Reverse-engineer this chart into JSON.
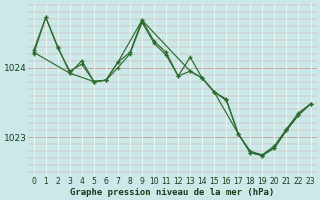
{
  "title": "Graphe pression niveau de la mer (hPa)",
  "bg_color": "#cce9ea",
  "line_color": "#2d6a2d",
  "grid_color_h": "#d4a0a0",
  "grid_color_v": "#e8f5f5",
  "xlim": [
    -0.5,
    23.5
  ],
  "ylim": [
    1022.45,
    1024.92
  ],
  "ytick_major": [
    1023,
    1024
  ],
  "ytick_minor_step": 0.1,
  "xticks": [
    0,
    1,
    2,
    3,
    4,
    5,
    6,
    7,
    8,
    9,
    10,
    11,
    12,
    13,
    14,
    15,
    16,
    17,
    18,
    19,
    20,
    21,
    22,
    23
  ],
  "series1_x": [
    0,
    1,
    2,
    3,
    4,
    5,
    6,
    7,
    8,
    9,
    10,
    11,
    12,
    13,
    14,
    15,
    16,
    17,
    18,
    19,
    20,
    21,
    22,
    23
  ],
  "series1_y": [
    1024.25,
    1024.72,
    1024.3,
    1023.92,
    1024.1,
    1023.8,
    1023.82,
    1024.08,
    1024.22,
    1024.68,
    1024.38,
    1024.22,
    1023.88,
    1024.15,
    1023.85,
    1023.65,
    1023.55,
    1023.05,
    1022.8,
    1022.75,
    1022.88,
    1023.12,
    1023.35,
    1023.48
  ],
  "series2_x": [
    0,
    1,
    2,
    3,
    4,
    5,
    6,
    7,
    8,
    9,
    10,
    11,
    12,
    13,
    14,
    15,
    16,
    17,
    18,
    19,
    20,
    21,
    22,
    23
  ],
  "series2_y": [
    1024.2,
    1024.72,
    1024.28,
    1023.95,
    1024.05,
    1023.8,
    1023.82,
    1024.0,
    1024.2,
    1024.65,
    1024.35,
    1024.18,
    1023.88,
    1023.95,
    1023.85,
    1023.65,
    1023.53,
    1023.05,
    1022.78,
    1022.74,
    1022.85,
    1023.1,
    1023.32,
    1023.48
  ],
  "series3_x": [
    0,
    3,
    5,
    6,
    7,
    9,
    13,
    14,
    15,
    17,
    18,
    19,
    20,
    21,
    22,
    23
  ],
  "series3_y": [
    1024.22,
    1023.92,
    1023.8,
    1023.82,
    1024.08,
    1024.68,
    1023.95,
    1023.85,
    1023.65,
    1023.05,
    1022.78,
    1022.74,
    1022.85,
    1023.1,
    1023.32,
    1023.48
  ],
  "tick_fontsize": 5.5,
  "ylabel_fontsize": 6.5,
  "xlabel_fontsize": 6.5,
  "marker_size": 3.0,
  "linewidth": 0.85
}
